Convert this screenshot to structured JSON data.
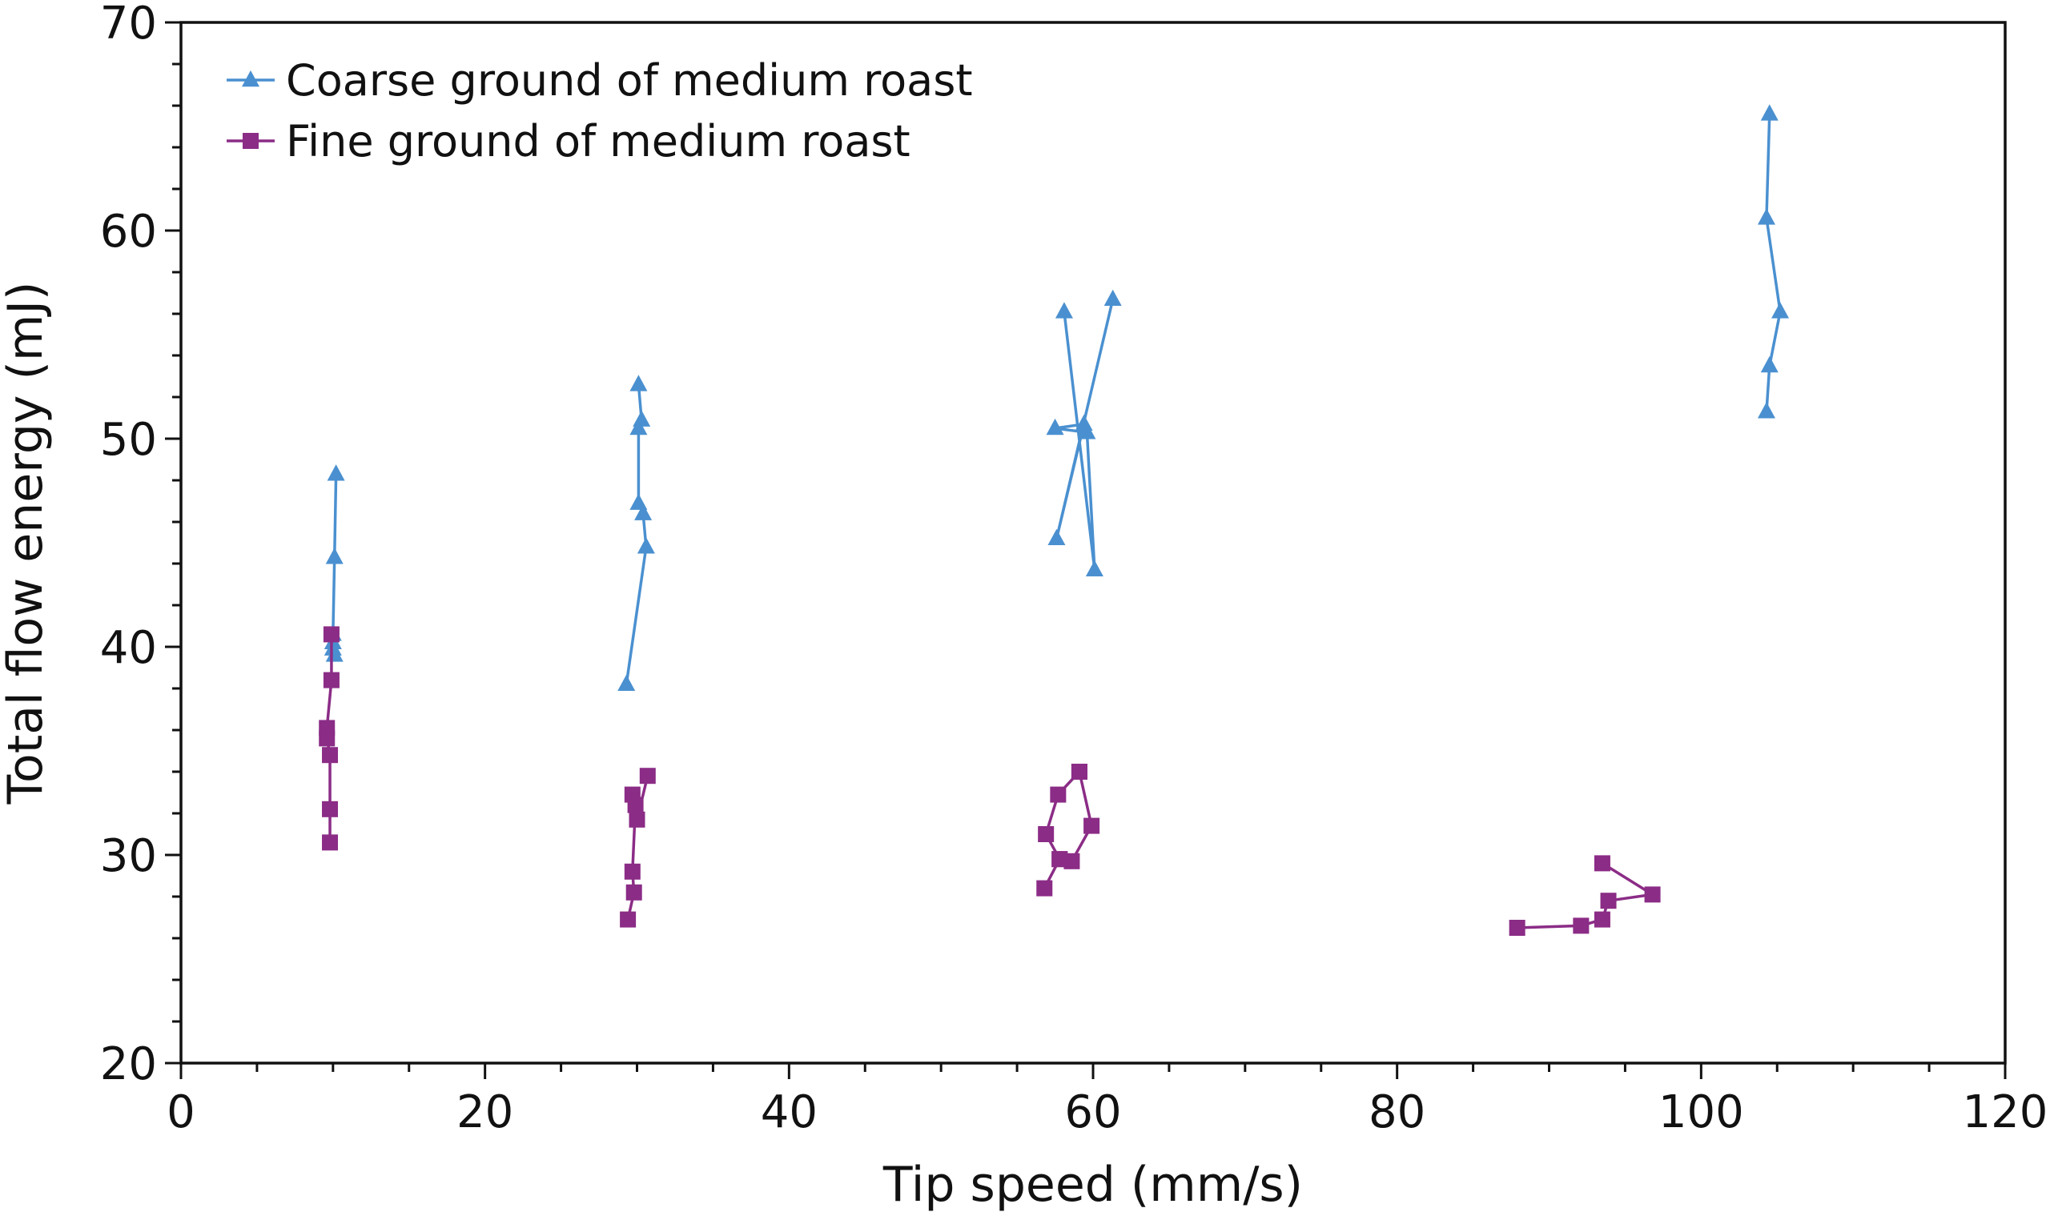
{
  "chart_data": {
    "type": "line",
    "title": "",
    "xlabel": "Tip speed (mm/s)",
    "ylabel": "Total flow energy (mJ)",
    "xlim": [
      0,
      120
    ],
    "ylim": [
      20,
      70
    ],
    "xticks": [
      0,
      20,
      40,
      60,
      80,
      100,
      120
    ],
    "yticks": [
      20,
      30,
      40,
      50,
      60,
      70
    ],
    "x_minor_step": 5,
    "y_minor_step": 2,
    "grid": false,
    "legend_position": "top-left",
    "series": [
      {
        "name": "Coarse ground of medium roast",
        "color": "#4a90d0",
        "marker": "triangle",
        "segments": [
          [
            [
              10.2,
              48.3
            ],
            [
              10.1,
              44.3
            ],
            [
              10.0,
              40.6
            ],
            [
              10.0,
              40.2
            ],
            [
              10.0,
              39.9
            ],
            [
              10.1,
              39.6
            ]
          ],
          [
            [
              29.3,
              38.2
            ],
            [
              30.6,
              44.8
            ],
            [
              30.4,
              46.4
            ],
            [
              30.1,
              46.9
            ],
            [
              30.1,
              50.5
            ],
            [
              30.3,
              50.9
            ],
            [
              30.1,
              52.6
            ]
          ],
          [
            [
              61.3,
              56.7
            ],
            [
              57.6,
              45.2
            ],
            [
              59.4,
              50.7
            ],
            [
              57.5,
              50.5
            ],
            [
              59.6,
              50.3
            ],
            [
              60.1,
              43.7
            ],
            [
              58.1,
              56.1
            ]
          ],
          [
            [
              104.5,
              65.6
            ],
            [
              104.3,
              60.6
            ],
            [
              105.2,
              56.1
            ],
            [
              104.5,
              53.5
            ],
            [
              104.3,
              51.3
            ]
          ]
        ]
      },
      {
        "name": "Fine ground of medium roast",
        "color": "#8b2c86",
        "marker": "square",
        "segments": [
          [
            [
              9.9,
              40.6
            ],
            [
              9.9,
              38.4
            ],
            [
              9.6,
              36.1
            ],
            [
              9.6,
              35.6
            ],
            [
              9.8,
              34.8
            ],
            [
              9.8,
              32.2
            ],
            [
              9.8,
              30.6
            ]
          ],
          [
            [
              30.7,
              33.8
            ],
            [
              30.0,
              31.7
            ],
            [
              29.7,
              32.9
            ],
            [
              29.9,
              32.4
            ],
            [
              29.7,
              29.2
            ],
            [
              29.8,
              28.2
            ],
            [
              29.4,
              26.9
            ]
          ],
          [
            [
              59.1,
              34.0
            ],
            [
              57.7,
              32.9
            ],
            [
              56.9,
              31.0
            ],
            [
              57.8,
              29.8
            ],
            [
              58.6,
              29.7
            ],
            [
              59.9,
              31.4
            ],
            [
              59.1,
              34.0
            ]
          ],
          [
            [
              56.8,
              28.4
            ],
            [
              57.8,
              29.8
            ]
          ],
          [
            [
              93.5,
              29.6
            ],
            [
              96.8,
              28.1
            ],
            [
              93.9,
              27.8
            ],
            [
              93.5,
              26.9
            ],
            [
              92.1,
              26.6
            ],
            [
              87.9,
              26.5
            ]
          ]
        ]
      }
    ]
  }
}
